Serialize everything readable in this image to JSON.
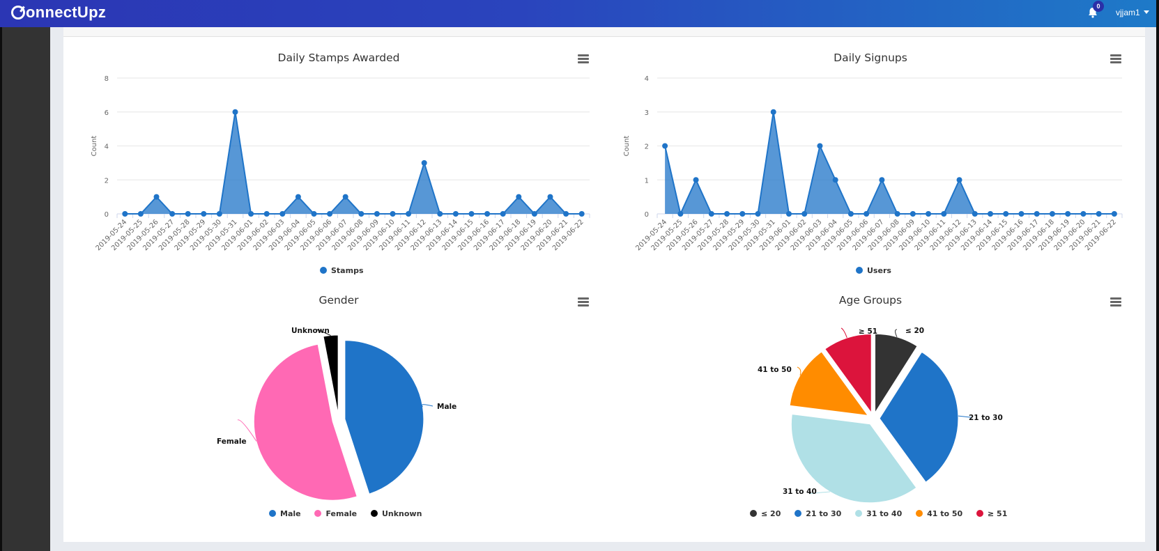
{
  "app": {
    "logo_text": "onnectUpz",
    "notifications_count": "0",
    "username": "vjjam1"
  },
  "colors": {
    "primary": "#1f74c8",
    "header_start": "#2b36b4",
    "header_end": "#1e7ac8"
  },
  "chart_data": [
    {
      "id": "stamps",
      "type": "area",
      "title": "Daily Stamps Awarded",
      "xlabel": "",
      "ylabel": "Count",
      "ylim": [
        0,
        8
      ],
      "yticks": [
        0,
        2,
        4,
        6,
        8
      ],
      "grid": true,
      "legend_position": "bottom-center",
      "x": [
        "2019-05-24",
        "2019-05-25",
        "2019-05-26",
        "2019-05-27",
        "2019-05-28",
        "2019-05-29",
        "2019-05-30",
        "2019-05-31",
        "2019-06-01",
        "2019-06-02",
        "2019-06-03",
        "2019-06-04",
        "2019-06-05",
        "2019-06-06",
        "2019-06-07",
        "2019-06-08",
        "2019-06-09",
        "2019-06-10",
        "2019-06-11",
        "2019-06-12",
        "2019-06-13",
        "2019-06-14",
        "2019-06-15",
        "2019-06-16",
        "2019-06-17",
        "2019-06-18",
        "2019-06-19",
        "2019-06-20",
        "2019-06-21",
        "2019-06-22"
      ],
      "series": [
        {
          "name": "Stamps",
          "color": "#1f74c8",
          "values": [
            0,
            0,
            1,
            0,
            0,
            0,
            0,
            6,
            0,
            0,
            0,
            1,
            0,
            0,
            1,
            0,
            0,
            0,
            0,
            3,
            0,
            0,
            0,
            0,
            0,
            1,
            0,
            1,
            0,
            0
          ]
        }
      ]
    },
    {
      "id": "signups",
      "type": "area",
      "title": "Daily Signups",
      "xlabel": "",
      "ylabel": "Count",
      "ylim": [
        0,
        4
      ],
      "yticks": [
        0,
        1,
        2,
        3,
        4
      ],
      "grid": true,
      "legend_position": "bottom-center",
      "x": [
        "2019-05-24",
        "2019-05-25",
        "2019-05-26",
        "2019-05-27",
        "2019-05-28",
        "2019-05-29",
        "2019-05-30",
        "2019-05-31",
        "2019-06-01",
        "2019-06-02",
        "2019-06-03",
        "2019-06-04",
        "2019-06-05",
        "2019-06-06",
        "2019-06-07",
        "2019-06-08",
        "2019-06-09",
        "2019-06-10",
        "2019-06-11",
        "2019-06-12",
        "2019-06-13",
        "2019-06-14",
        "2019-06-15",
        "2019-06-16",
        "2019-06-17",
        "2019-06-18",
        "2019-06-19",
        "2019-06-20",
        "2019-06-21",
        "2019-06-22"
      ],
      "series": [
        {
          "name": "Users",
          "color": "#1f74c8",
          "values": [
            2,
            0,
            1,
            0,
            0,
            0,
            0,
            3,
            0,
            0,
            2,
            1,
            0,
            0,
            1,
            0,
            0,
            0,
            0,
            1,
            0,
            0,
            0,
            0,
            0,
            0,
            0,
            0,
            0,
            0
          ]
        }
      ]
    },
    {
      "id": "gender",
      "type": "pie",
      "title": "Gender",
      "legend_position": "bottom-center",
      "slices": [
        {
          "label": "Male",
          "value": 45,
          "color": "#1f74c8"
        },
        {
          "label": "Female",
          "value": 52,
          "color": "#ff69b4"
        },
        {
          "label": "Unknown",
          "value": 3,
          "color": "#000000"
        }
      ]
    },
    {
      "id": "age",
      "type": "pie",
      "title": "Age Groups",
      "legend_position": "bottom-center",
      "slices": [
        {
          "label": "≤ 20",
          "value": 9,
          "color": "#333333"
        },
        {
          "label": "21 to 30",
          "value": 31,
          "color": "#1f74c8"
        },
        {
          "label": "31 to 40",
          "value": 37,
          "color": "#b0e0e6"
        },
        {
          "label": "41 to 50",
          "value": 13,
          "color": "#ff8c00"
        },
        {
          "label": "≥ 51",
          "value": 10,
          "color": "#dc143c"
        }
      ]
    }
  ]
}
